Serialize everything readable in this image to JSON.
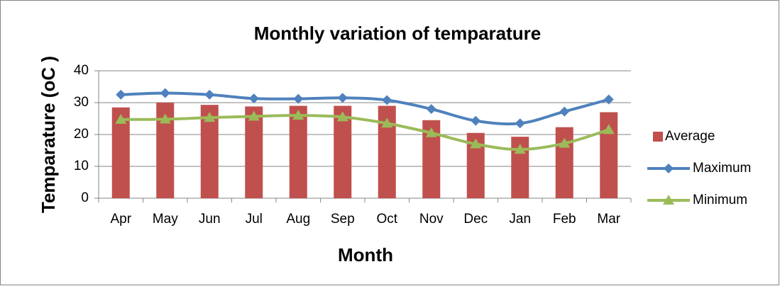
{
  "chart_data": {
    "type": "bar",
    "title": "Monthly variation of temparature",
    "x_label": "Month",
    "y_label": "Temparature (oC )",
    "categories": [
      "Apr",
      "May",
      "Jun",
      "Jul",
      "Aug",
      "Sep",
      "Oct",
      "Nov",
      "Dec",
      "Jan",
      "Feb",
      "Mar"
    ],
    "series": [
      {
        "name": "Average",
        "type": "bar",
        "color": "#c0504d",
        "values": [
          28.5,
          30,
          29.3,
          28.8,
          29,
          29,
          29,
          24.5,
          20.5,
          19.3,
          22.3,
          27
        ]
      },
      {
        "name": "Maximum",
        "type": "line",
        "marker": "diamond",
        "color": "#4f81bd",
        "values": [
          32.5,
          33,
          32.5,
          31.3,
          31.2,
          31.5,
          30.8,
          28,
          24.3,
          23.5,
          27.2,
          31
        ]
      },
      {
        "name": "Minimum",
        "type": "line",
        "marker": "triangle",
        "color": "#9bbb59",
        "values": [
          24.7,
          24.8,
          25.3,
          25.7,
          26,
          25.5,
          23.5,
          20.5,
          17,
          15.3,
          17.2,
          21.5
        ]
      }
    ],
    "ylim": [
      0,
      40
    ],
    "yticks": [
      0,
      10,
      20,
      30,
      40
    ],
    "grid": true,
    "legend": "right"
  }
}
